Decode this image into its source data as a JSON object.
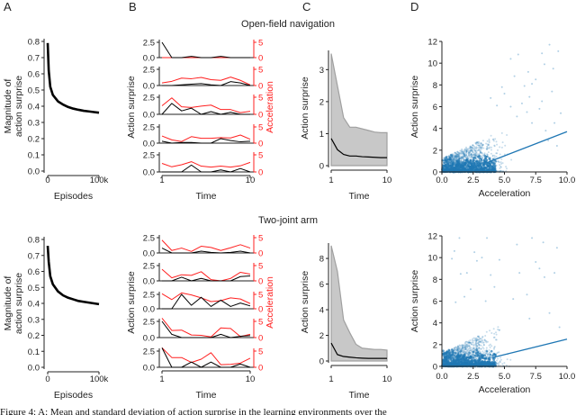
{
  "titles": {
    "top": "Open-field navigation",
    "bottom": "Two-joint arm"
  },
  "letters": [
    "A",
    "B",
    "C",
    "D"
  ],
  "caption": "Figure 4: A: Mean and standard deviation of action surprise in the learning environments over the",
  "colors": {
    "black": "#000000",
    "red": "#ff2020",
    "scatter": "#1f77b4",
    "band": "#c8c8c8",
    "band_edge": "#a0a0a0"
  },
  "chart_data": [
    {
      "id": "A-top",
      "panel": "A",
      "type": "line",
      "xlabel": "Episodes",
      "ylabel": [
        "Magnitude of",
        "action surprise"
      ],
      "xticks": [
        {
          "v": 0,
          "label": "0"
        },
        {
          "v": 100,
          "label": "100k"
        }
      ],
      "xunit": "thousand episodes",
      "yticks": [
        "0.0",
        "0.1",
        "0.2",
        "0.3",
        "0.4",
        "0.5",
        "0.6",
        "0.7",
        "0.8"
      ],
      "ylim": [
        0,
        0.8
      ],
      "xlim": [
        0,
        100
      ],
      "x": [
        0,
        2,
        5,
        10,
        20,
        30,
        40,
        50,
        60,
        70,
        80,
        90,
        100
      ],
      "y": [
        0.79,
        0.62,
        0.52,
        0.47,
        0.43,
        0.41,
        0.395,
        0.385,
        0.378,
        0.372,
        0.368,
        0.364,
        0.36
      ]
    },
    {
      "id": "A-bottom",
      "panel": "A",
      "type": "line",
      "xlabel": "Episodes",
      "ylabel": [
        "Magnitude of",
        "action surprise"
      ],
      "xticks": [
        {
          "v": 0,
          "label": "0"
        },
        {
          "v": 100,
          "label": "100k"
        }
      ],
      "xunit": "thousand episodes",
      "yticks": [
        "0.0",
        "0.1",
        "0.2",
        "0.3",
        "0.4",
        "0.5",
        "0.6",
        "0.7",
        "0.8"
      ],
      "ylim": [
        0,
        0.8
      ],
      "xlim": [
        0,
        100
      ],
      "x": [
        0,
        2,
        5,
        10,
        20,
        30,
        40,
        50,
        60,
        70,
        80,
        90,
        100
      ],
      "y": [
        0.76,
        0.66,
        0.57,
        0.52,
        0.475,
        0.45,
        0.435,
        0.425,
        0.415,
        0.41,
        0.405,
        0.4,
        0.395
      ]
    },
    {
      "id": "B-top",
      "panel": "B",
      "type": "line",
      "xlabel": "Time",
      "ylabel": "Action surprise",
      "y2label": "Acceleration",
      "xticks": [
        "1",
        "10"
      ],
      "yticks": [
        "0.0",
        "2.5"
      ],
      "y2ticks": [
        "0",
        "5"
      ],
      "ylim": [
        0,
        2.5
      ],
      "y2lim": [
        0,
        5
      ],
      "rows": [
        {
          "surprise": [
            2.5,
            0,
            0,
            0.2,
            0,
            0,
            0.2,
            0,
            0,
            0
          ],
          "acceleration": [
            0,
            0,
            0,
            0,
            0,
            0,
            0,
            0,
            0,
            0
          ]
        },
        {
          "surprise": [
            0,
            0,
            0.1,
            0.2,
            0.3,
            0.1,
            0,
            0.6,
            0.4,
            0
          ],
          "acceleration": [
            0.8,
            1.3,
            2.3,
            2.1,
            2.5,
            1.8,
            1.6,
            2.6,
            1.6,
            0.2
          ]
        },
        {
          "surprise": [
            0,
            1.6,
            0.5,
            0.9,
            0,
            0.4,
            0,
            0.3,
            0,
            0
          ],
          "acceleration": [
            2.5,
            4.8,
            2.2,
            2.0,
            2.4,
            2.7,
            1.4,
            1.4,
            0.5,
            0.9
          ]
        },
        {
          "surprise": [
            0.3,
            0,
            0.1,
            0.1,
            0,
            0,
            0.7,
            0.4,
            0.2,
            0.3
          ],
          "acceleration": [
            2.2,
            1.0,
            0.5,
            2.0,
            1.5,
            1.5,
            1.7,
            1.6,
            2.5,
            1.2
          ]
        },
        {
          "surprise": [
            0,
            0,
            0,
            1.0,
            0,
            0,
            0.3,
            0,
            0.5,
            0
          ],
          "acceleration": [
            2.5,
            1.5,
            2.1,
            3.0,
            1.7,
            1.4,
            1.7,
            1.4,
            1.8,
            2.8
          ]
        }
      ]
    },
    {
      "id": "B-bottom",
      "panel": "B",
      "type": "line",
      "xlabel": "Time",
      "ylabel": "Action surprise",
      "y2label": "Acceleration",
      "xticks": [
        "1",
        "10"
      ],
      "yticks": [
        "0.0",
        "2.5"
      ],
      "y2ticks": [
        "0",
        "5"
      ],
      "ylim": [
        0,
        2.5
      ],
      "y2lim": [
        0,
        5
      ],
      "rows": [
        {
          "surprise": [
            0.8,
            0,
            0,
            0,
            0.3,
            0.1,
            0,
            0.1,
            0.3,
            0
          ],
          "acceleration": [
            4.2,
            0.8,
            1.6,
            0.5,
            2.2,
            1.8,
            0.8,
            1.7,
            2.7,
            1.6
          ]
        },
        {
          "surprise": [
            0,
            0,
            0.6,
            0,
            0.4,
            0,
            0,
            0,
            0.7,
            0.8
          ],
          "acceleration": [
            3.8,
            1.0,
            2.0,
            1.8,
            3.0,
            0.4,
            0,
            0.8,
            2.8,
            2.2
          ]
        },
        {
          "surprise": [
            0,
            0,
            2.5,
            0.6,
            2.0,
            0.4,
            1.5,
            0.4,
            1.0,
            0.5
          ],
          "acceleration": [
            5.2,
            3.2,
            5.5,
            4.8,
            3.8,
            2.5,
            2.8,
            3.8,
            3.4,
            1.8
          ]
        },
        {
          "surprise": [
            2.5,
            0.5,
            0,
            0,
            0,
            0,
            0.5,
            0,
            0.2,
            0.3
          ],
          "acceleration": [
            6,
            2.2,
            2.3,
            0.8,
            0.7,
            0.2,
            3.0,
            2.8,
            0.3,
            1.0
          ]
        },
        {
          "surprise": [
            3,
            0,
            0,
            0.8,
            0,
            0.8,
            0,
            0,
            0.5,
            0
          ],
          "acceleration": [
            6,
            3.0,
            3.0,
            1.5,
            2.5,
            4.5,
            0.8,
            0.9,
            1.3,
            2.8
          ]
        }
      ]
    },
    {
      "id": "C-top",
      "panel": "C",
      "type": "area",
      "xlabel": "Time",
      "ylabel": "Action surprise",
      "xticks": [
        "1",
        "10"
      ],
      "yticks": [
        "0",
        "1",
        "2",
        "3"
      ],
      "ylim": [
        0,
        3.6
      ],
      "xlim": [
        1,
        10
      ],
      "x": [
        1,
        2,
        3,
        4,
        5,
        6,
        7,
        8,
        9,
        10
      ],
      "mean": [
        0.85,
        0.5,
        0.35,
        0.3,
        0.3,
        0.28,
        0.27,
        0.26,
        0.25,
        0.25
      ],
      "upper": [
        3.5,
        2.5,
        1.5,
        1.2,
        1.2,
        1.15,
        1.1,
        1.05,
        1.03,
        1.03
      ],
      "lower": [
        0,
        0,
        0,
        0,
        0,
        0,
        0,
        0,
        0,
        0
      ]
    },
    {
      "id": "C-bottom",
      "panel": "C",
      "type": "area",
      "xlabel": "Time",
      "ylabel": "Action surprise",
      "xticks": [
        "1",
        "10"
      ],
      "yticks": [
        "0",
        "2",
        "4",
        "6",
        "8"
      ],
      "ylim": [
        0,
        9.2
      ],
      "xlim": [
        1,
        10
      ],
      "x": [
        1,
        2,
        3,
        4,
        5,
        6,
        7,
        8,
        9,
        10
      ],
      "mean": [
        1.4,
        0.5,
        0.35,
        0.3,
        0.25,
        0.22,
        0.2,
        0.2,
        0.2,
        0.2
      ],
      "upper": [
        9,
        7,
        3.2,
        2.2,
        1.3,
        1.0,
        0.95,
        0.9,
        0.9,
        0.85
      ],
      "lower": [
        0,
        0,
        0,
        0,
        0,
        0,
        0,
        0,
        0,
        0
      ]
    },
    {
      "id": "D-top",
      "panel": "D",
      "type": "scatter",
      "xlabel": "Acceleration",
      "ylabel": "Action surprise",
      "xticks": [
        "0.0",
        "2.5",
        "5.0",
        "7.5",
        "10.0"
      ],
      "yticks": [
        "0",
        "2",
        "4",
        "6",
        "8",
        "10",
        "12"
      ],
      "xlim": [
        0,
        10
      ],
      "ylim": [
        0,
        12
      ],
      "regression": {
        "from": [
          3.7,
          0.9
        ],
        "to": [
          10,
          3.7
        ]
      },
      "outliers": [
        [
          8.6,
          11.7
        ],
        [
          9.3,
          11.1
        ],
        [
          6.1,
          10.8
        ],
        [
          5.5,
          10.4
        ],
        [
          8.0,
          10.9
        ],
        [
          8.2,
          9.9
        ],
        [
          8.9,
          9.5
        ],
        [
          6.9,
          9.2
        ],
        [
          5.8,
          8.8
        ],
        [
          7.5,
          8.5
        ],
        [
          7.2,
          8.1
        ],
        [
          6.6,
          7.9
        ],
        [
          8.8,
          7.4
        ],
        [
          5.0,
          7.2
        ],
        [
          7.0,
          6.9
        ],
        [
          6.4,
          6.3
        ],
        [
          8.0,
          6.5
        ],
        [
          9.5,
          5.4
        ],
        [
          5.5,
          6.0
        ],
        [
          7.8,
          5.8
        ],
        [
          4.4,
          6.1
        ],
        [
          6.8,
          5.5
        ],
        [
          9.0,
          4.5
        ],
        [
          8.3,
          3.8
        ],
        [
          9.2,
          2.4
        ],
        [
          4.8,
          7.8
        ],
        [
          3.9,
          6.8
        ],
        [
          6.0,
          5.1
        ],
        [
          8.5,
          2.9
        ],
        [
          7.2,
          4.5
        ]
      ]
    },
    {
      "id": "D-bottom",
      "panel": "D",
      "type": "scatter",
      "xlabel": "Acceleration",
      "ylabel": "Action surprise",
      "xticks": [
        "0.0",
        "2.5",
        "5.0",
        "7.5",
        "10.0"
      ],
      "yticks": [
        "0",
        "2",
        "4",
        "6",
        "8",
        "10",
        "12"
      ],
      "xlim": [
        0,
        10
      ],
      "ylim": [
        0,
        12
      ],
      "regression": {
        "from": [
          4.0,
          0.8
        ],
        "to": [
          10,
          2.5
        ]
      },
      "outliers": [
        [
          3.6,
          11.8
        ],
        [
          1.4,
          11.8
        ],
        [
          7.2,
          11.8
        ],
        [
          6.0,
          11.2
        ],
        [
          8.1,
          11.4
        ],
        [
          9.2,
          10.9
        ],
        [
          1.0,
          10.6
        ],
        [
          2.6,
          10.5
        ],
        [
          2.8,
          9.7
        ],
        [
          3.2,
          10.0
        ],
        [
          0.8,
          9.9
        ],
        [
          7.5,
          9.6
        ],
        [
          4.6,
          9.8
        ],
        [
          7.8,
          9.0
        ],
        [
          1.5,
          8.5
        ],
        [
          2.0,
          8.6
        ],
        [
          6.2,
          8.6
        ],
        [
          9.0,
          8.6
        ],
        [
          3.9,
          8.4
        ],
        [
          8.2,
          8.2
        ],
        [
          2.3,
          7.1
        ],
        [
          1.8,
          6.4
        ],
        [
          4.2,
          7.3
        ],
        [
          6.8,
          6.6
        ],
        [
          3.5,
          6.0
        ],
        [
          1.1,
          5.9
        ],
        [
          5.7,
          6.2
        ],
        [
          8.6,
          4.9
        ],
        [
          9.4,
          3.6
        ],
        [
          7.0,
          4.4
        ]
      ]
    }
  ]
}
